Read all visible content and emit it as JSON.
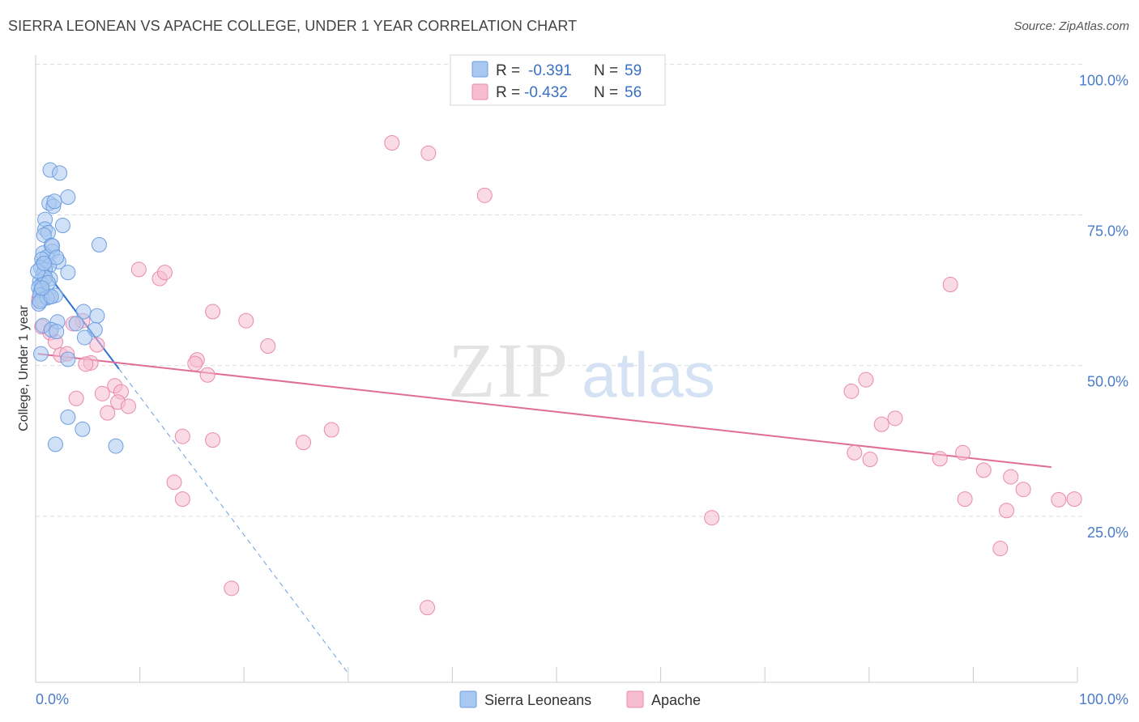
{
  "title": "SIERRA LEONEAN VS APACHE COLLEGE, UNDER 1 YEAR CORRELATION CHART",
  "source": "Source: ZipAtlas.com",
  "watermark": {
    "zip": "ZIP",
    "atlas": "atlas"
  },
  "colors": {
    "blue_fill": "#a9c8f0",
    "blue_stroke": "#6d9ee0",
    "blue_line": "#2f6fd0",
    "pink_fill": "#f6bcd0",
    "pink_stroke": "#e98aaa",
    "pink_line": "#e06c98",
    "grid": "#dddddd",
    "tick_label": "#4a7cc9"
  },
  "legend": {
    "r_label": "R =",
    "n_label": "N =",
    "items": [
      {
        "r": "-0.391",
        "n": "59"
      },
      {
        "r": "-0.432",
        "n": "56"
      }
    ]
  },
  "chart_data": {
    "type": "scatter",
    "title": "SIERRA LEONEAN VS APACHE COLLEGE, UNDER 1 YEAR CORRELATION CHART",
    "xlabel": "",
    "ylabel": "College, Under 1 year",
    "xlim": [
      0,
      100
    ],
    "ylim": [
      0,
      103
    ],
    "x_tick_labels": [
      "0.0%",
      "100.0%"
    ],
    "y_ticks": [
      25,
      50,
      75,
      100
    ],
    "y_tick_labels": [
      "25.0%",
      "50.0%",
      "75.0%",
      "100.0%"
    ],
    "grid": true,
    "legend_position": "bottom-center",
    "series": [
      {
        "name": "Sierra Leoneans",
        "color": "#a9c8f0",
        "trend": {
          "x": [
            0.1,
            8.0
          ],
          "y": [
            70.2,
            52.0
          ],
          "dashed_to": [
            30.0,
            1.5
          ]
        },
        "points": [
          [
            1.4,
            85.0
          ],
          [
            2.3,
            84.5
          ],
          [
            3.1,
            80.5
          ],
          [
            1.3,
            79.5
          ],
          [
            1.7,
            79.0
          ],
          [
            1.8,
            79.8
          ],
          [
            0.9,
            76.8
          ],
          [
            2.6,
            75.8
          ],
          [
            0.9,
            75.2
          ],
          [
            1.2,
            74.6
          ],
          [
            0.8,
            74.2
          ],
          [
            6.1,
            72.6
          ],
          [
            1.5,
            72.5
          ],
          [
            1.6,
            71.5
          ],
          [
            0.7,
            71.2
          ],
          [
            1.1,
            70.6
          ],
          [
            0.6,
            70.2
          ],
          [
            2.2,
            69.8
          ],
          [
            1.3,
            69.1
          ],
          [
            0.5,
            68.8
          ],
          [
            0.9,
            68.5
          ],
          [
            3.1,
            68.0
          ],
          [
            0.7,
            67.7
          ],
          [
            1.4,
            67.0
          ],
          [
            0.4,
            66.5
          ],
          [
            0.6,
            66.0
          ],
          [
            0.3,
            65.5
          ],
          [
            0.5,
            65.0
          ],
          [
            0.8,
            64.5
          ],
          [
            0.4,
            64.2
          ],
          [
            1.3,
            64.0
          ],
          [
            1.9,
            64.2
          ],
          [
            0.6,
            63.5
          ],
          [
            0.3,
            62.8
          ],
          [
            4.6,
            61.5
          ],
          [
            5.9,
            60.8
          ],
          [
            2.1,
            59.8
          ],
          [
            3.9,
            59.5
          ],
          [
            0.7,
            59.2
          ],
          [
            1.5,
            58.5
          ],
          [
            2.0,
            58.2
          ],
          [
            5.7,
            58.5
          ],
          [
            4.7,
            57.2
          ],
          [
            0.5,
            54.5
          ],
          [
            3.1,
            53.6
          ],
          [
            3.1,
            44.0
          ],
          [
            4.5,
            42.0
          ],
          [
            1.9,
            39.5
          ],
          [
            7.7,
            39.2
          ],
          [
            1.1,
            63.8
          ],
          [
            0.9,
            67.2
          ],
          [
            1.6,
            72.4
          ],
          [
            0.2,
            68.2
          ],
          [
            0.4,
            63.2
          ],
          [
            2.0,
            70.5
          ],
          [
            1.2,
            66.3
          ],
          [
            0.8,
            69.5
          ],
          [
            1.5,
            64.0
          ],
          [
            0.6,
            65.4
          ]
        ]
      },
      {
        "name": "Apache",
        "color": "#f6bcd0",
        "trend": {
          "x": [
            0.2,
            97.5
          ],
          "y": [
            54.5,
            35.7
          ]
        },
        "points": [
          [
            34.2,
            89.5
          ],
          [
            37.7,
            87.8
          ],
          [
            43.1,
            80.8
          ],
          [
            9.9,
            68.5
          ],
          [
            11.9,
            67.0
          ],
          [
            12.4,
            68.0
          ],
          [
            17.0,
            61.5
          ],
          [
            20.2,
            60.0
          ],
          [
            4.5,
            60.0
          ],
          [
            3.6,
            59.5
          ],
          [
            0.6,
            59.0
          ],
          [
            1.4,
            58.0
          ],
          [
            22.3,
            55.8
          ],
          [
            1.9,
            56.5
          ],
          [
            5.9,
            56.0
          ],
          [
            2.4,
            54.3
          ],
          [
            3.0,
            54.5
          ],
          [
            15.5,
            53.5
          ],
          [
            15.3,
            52.9
          ],
          [
            5.3,
            53.0
          ],
          [
            4.8,
            52.8
          ],
          [
            16.5,
            51.0
          ],
          [
            7.6,
            49.2
          ],
          [
            6.4,
            47.9
          ],
          [
            8.2,
            48.2
          ],
          [
            3.9,
            47.1
          ],
          [
            7.9,
            46.5
          ],
          [
            8.9,
            45.8
          ],
          [
            6.9,
            44.7
          ],
          [
            14.1,
            40.8
          ],
          [
            17.0,
            40.2
          ],
          [
            25.7,
            39.8
          ],
          [
            28.4,
            41.9
          ],
          [
            13.3,
            33.2
          ],
          [
            14.1,
            30.4
          ],
          [
            18.8,
            15.6
          ],
          [
            37.6,
            12.4
          ],
          [
            64.9,
            27.3
          ],
          [
            87.8,
            66.0
          ],
          [
            78.3,
            48.3
          ],
          [
            79.7,
            50.2
          ],
          [
            81.2,
            42.8
          ],
          [
            82.5,
            43.8
          ],
          [
            78.6,
            38.1
          ],
          [
            80.1,
            37.0
          ],
          [
            86.8,
            37.1
          ],
          [
            89.0,
            38.1
          ],
          [
            91.0,
            35.2
          ],
          [
            93.6,
            34.1
          ],
          [
            94.8,
            32.0
          ],
          [
            89.2,
            30.4
          ],
          [
            93.2,
            28.5
          ],
          [
            92.6,
            22.2
          ],
          [
            98.2,
            30.3
          ],
          [
            99.7,
            30.4
          ],
          [
            0.3,
            63.5
          ]
        ]
      }
    ]
  },
  "bottom_legend": [
    {
      "label": "Sierra Leoneans"
    },
    {
      "label": "Apache"
    }
  ]
}
